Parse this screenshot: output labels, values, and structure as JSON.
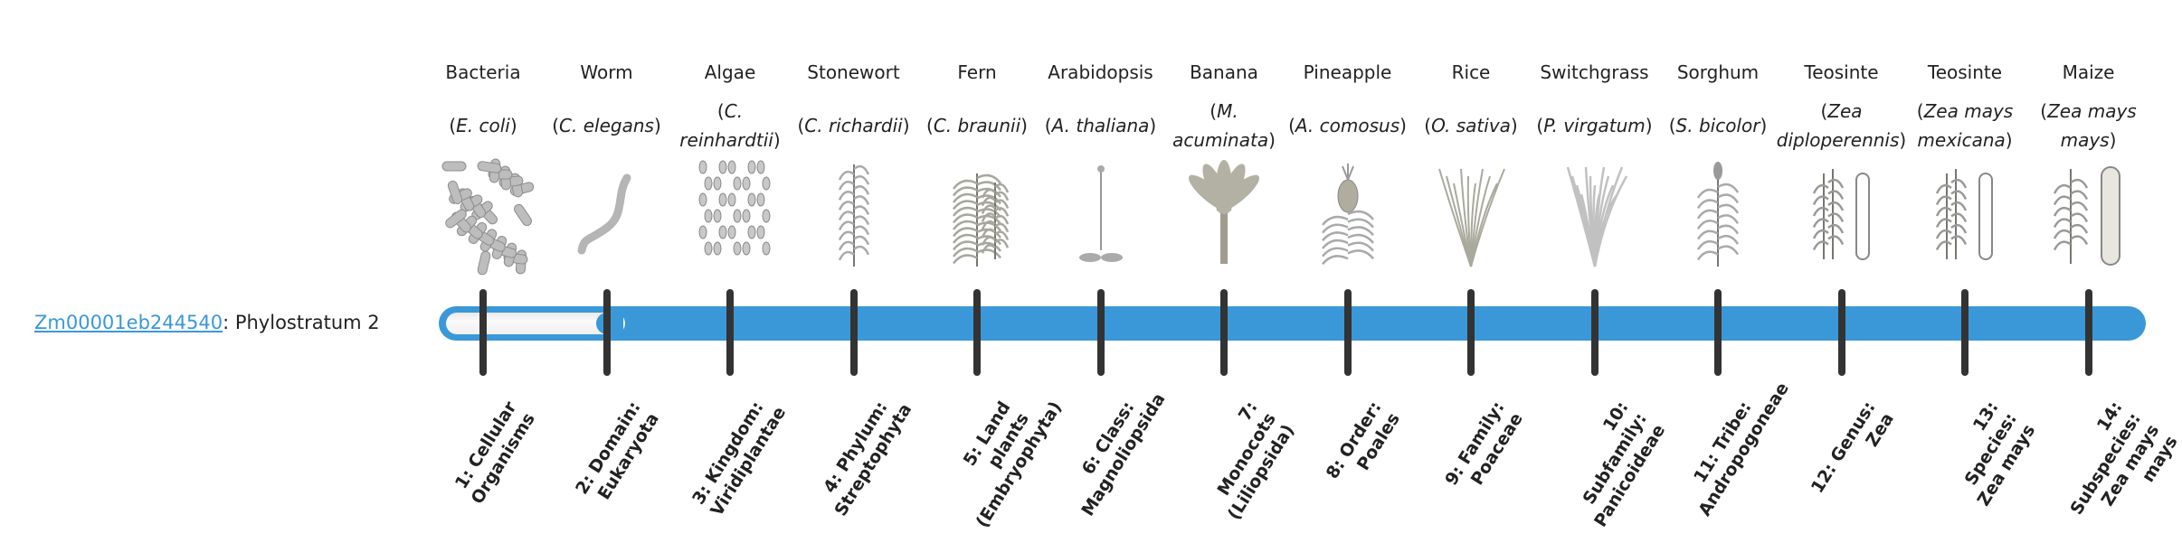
{
  "gene": {
    "id": "Zm00001eb244540",
    "separator": ": ",
    "phylostratum_text": "Phylostratum 2",
    "phylostratum": 2,
    "total_strata": 14
  },
  "colors": {
    "bar": "#3a98d8",
    "tick": "#333333",
    "link": "#3a98d8"
  },
  "organisms": [
    {
      "common": "Bacteria",
      "species": "E. coli",
      "icon": "bacteria"
    },
    {
      "common": "Worm",
      "species": "C. elegans",
      "icon": "worm"
    },
    {
      "common": "Algae",
      "species": "C. reinhardtii",
      "icon": "algae"
    },
    {
      "common": "Stonewort",
      "species": "C. richardii",
      "icon": "stonewort"
    },
    {
      "common": "Fern",
      "species": "C. braunii",
      "icon": "fern"
    },
    {
      "common": "Arabidopsis",
      "species": "A. thaliana",
      "icon": "arabidopsis"
    },
    {
      "common": "Banana",
      "species": "M. acuminata",
      "icon": "banana"
    },
    {
      "common": "Pineapple",
      "species": "A. comosus",
      "icon": "pineapple"
    },
    {
      "common": "Rice",
      "species": "O. sativa",
      "icon": "rice"
    },
    {
      "common": "Switchgrass",
      "species": "P. virgatum",
      "icon": "switchgrass"
    },
    {
      "common": "Sorghum",
      "species": "S. bicolor",
      "icon": "sorghum"
    },
    {
      "common": "Teosinte",
      "species": "Zea diploperennis",
      "icon": "teosinte"
    },
    {
      "common": "Teosinte",
      "species": "Zea mays mexicana",
      "icon": "teosinte"
    },
    {
      "common": "Maize",
      "species": "Zea mays mays",
      "icon": "maize"
    }
  ],
  "strata": [
    "1: Cellular Organisms",
    "2: Domain: Eukaryota",
    "3: Kingdom: Viridiplantae",
    "4: Phylum: Streptophyta",
    "5: Land plants (Embryophyta)",
    "6: Class: Magnoliopsida",
    "7: Monocots (Liliopsida)",
    "8: Order: Poales",
    "9: Family: Poaceae",
    "10: Subfamily: Panicoideae",
    "11: Tribe: Andropogoneae",
    "12: Genus: Zea",
    "13: Species: Zea mays",
    "14: Subspecies: Zea mays mays"
  ]
}
